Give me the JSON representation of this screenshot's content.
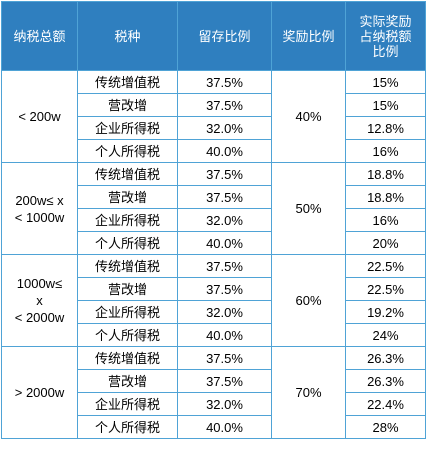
{
  "headers": [
    "纳税总额",
    "税种",
    "留存比例",
    "奖励比例",
    "实际奖励占纳税额比例"
  ],
  "header_lines": {
    "actual_reward": [
      "实际奖励",
      "占纳税额",
      "比例"
    ]
  },
  "groups": [
    {
      "total_lines": [
        "< 200w"
      ],
      "reward_ratio": "40%",
      "rows": [
        {
          "tax_type": "传统增值税",
          "retention": "37.5%",
          "actual": "15%"
        },
        {
          "tax_type": "营改增",
          "retention": "37.5%",
          "actual": "15%"
        },
        {
          "tax_type": "企业所得税",
          "retention": "32.0%",
          "actual": "12.8%"
        },
        {
          "tax_type": "个人所得税",
          "retention": "40.0%",
          "actual": "16%"
        }
      ]
    },
    {
      "total_lines": [
        "200w≤ x",
        "< 1000w"
      ],
      "reward_ratio": "50%",
      "rows": [
        {
          "tax_type": "传统增值税",
          "retention": "37.5%",
          "actual": "18.8%"
        },
        {
          "tax_type": "营改增",
          "retention": "37.5%",
          "actual": "18.8%"
        },
        {
          "tax_type": "企业所得税",
          "retention": "32.0%",
          "actual": "16%"
        },
        {
          "tax_type": "个人所得税",
          "retention": "40.0%",
          "actual": "20%"
        }
      ]
    },
    {
      "total_lines": [
        "1000w≤",
        "x",
        "< 2000w"
      ],
      "reward_ratio": "60%",
      "rows": [
        {
          "tax_type": "传统增值税",
          "retention": "37.5%",
          "actual": "22.5%"
        },
        {
          "tax_type": "营改增",
          "retention": "37.5%",
          "actual": "22.5%"
        },
        {
          "tax_type": "企业所得税",
          "retention": "32.0%",
          "actual": "19.2%"
        },
        {
          "tax_type": "个人所得税",
          "retention": "40.0%",
          "actual": "24%"
        }
      ]
    },
    {
      "total_lines": [
        "> 2000w"
      ],
      "reward_ratio": "70%",
      "rows": [
        {
          "tax_type": "传统增值税",
          "retention": "37.5%",
          "actual": "26.3%"
        },
        {
          "tax_type": "营改增",
          "retention": "37.5%",
          "actual": "26.3%"
        },
        {
          "tax_type": "企业所得税",
          "retention": "32.0%",
          "actual": "22.4%"
        },
        {
          "tax_type": "个人所得税",
          "retention": "40.0%",
          "actual": "28%"
        }
      ]
    }
  ]
}
